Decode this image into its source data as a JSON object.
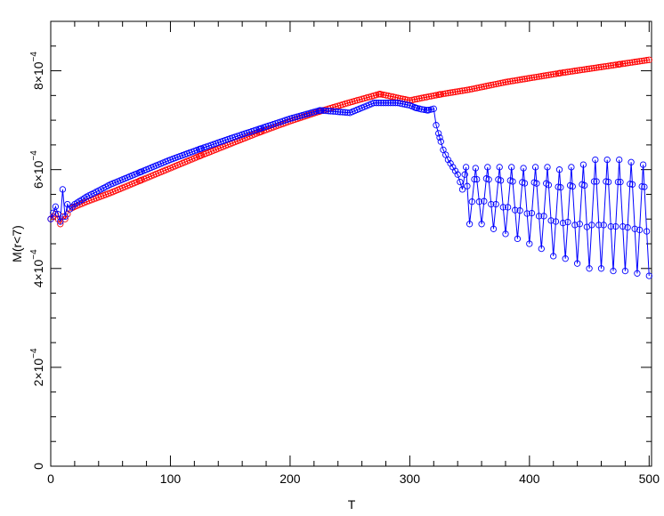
{
  "chart_data": {
    "type": "line",
    "title": "",
    "xlabel": "T",
    "ylabel": "M(r<7)",
    "xlim": [
      0,
      502
    ],
    "ylim": [
      0,
      0.0009
    ],
    "grid": false,
    "legend": "none",
    "x_ticks": [
      {
        "value": 0,
        "label": "0"
      },
      {
        "value": 100,
        "label": "100"
      },
      {
        "value": 200,
        "label": "200"
      },
      {
        "value": 300,
        "label": "300"
      },
      {
        "value": 400,
        "label": "400"
      },
      {
        "value": 500,
        "label": "500"
      }
    ],
    "y_ticks": [
      {
        "value": 0,
        "mantissa": "0",
        "exponent": ""
      },
      {
        "value": 0.0002,
        "mantissa": "2×10",
        "exponent": "−4"
      },
      {
        "value": 0.0004,
        "mantissa": "4×10",
        "exponent": "−4"
      },
      {
        "value": 0.0006,
        "mantissa": "6×10",
        "exponent": "−4"
      },
      {
        "value": 0.0008,
        "mantissa": "8×10",
        "exponent": "−4"
      }
    ],
    "series": [
      {
        "color": "#ff0000",
        "marker": "circle-open",
        "x": [
          0,
          4,
          8,
          10,
          12,
          16,
          20,
          30,
          50,
          75,
          100,
          125,
          150,
          175,
          200,
          225,
          250,
          275,
          300,
          325,
          350,
          360,
          370,
          380,
          400,
          425,
          450,
          475,
          500
        ],
        "y": [
          0.0005,
          0.00051,
          0.00049,
          0.000505,
          0.0005,
          0.00052,
          0.000525,
          0.000535,
          0.000553,
          0.000578,
          0.000603,
          0.000628,
          0.000652,
          0.000676,
          0.000698,
          0.000718,
          0.000736,
          0.000753,
          0.00074,
          0.000752,
          0.000762,
          0.000767,
          0.000772,
          0.000777,
          0.000785,
          0.000795,
          0.000804,
          0.000813,
          0.000822
        ]
      },
      {
        "color": "#0000ff",
        "marker": "circle-open",
        "x": [
          0,
          4,
          8,
          10,
          12,
          14,
          16,
          20,
          30,
          50,
          75,
          100,
          125,
          150,
          175,
          200,
          225,
          250,
          270,
          290,
          300,
          305,
          310,
          315,
          320,
          322,
          325,
          328,
          332,
          336,
          340,
          344,
          347,
          350,
          355,
          360,
          365,
          370,
          375,
          380,
          385,
          390,
          395,
          400,
          405,
          410,
          415,
          420,
          425,
          430,
          435,
          440,
          445,
          450,
          455,
          460,
          465,
          470,
          475,
          480,
          485,
          490,
          495,
          500
        ],
        "y": [
          0.0005,
          0.000525,
          0.000495,
          0.00056,
          0.000505,
          0.00053,
          0.00052,
          0.00053,
          0.000545,
          0.00057,
          0.000595,
          0.00062,
          0.000642,
          0.000663,
          0.000683,
          0.000703,
          0.00072,
          0.000715,
          0.000735,
          0.000735,
          0.00073,
          0.000725,
          0.000722,
          0.00072,
          0.000723,
          0.00069,
          0.000665,
          0.00064,
          0.00062,
          0.000605,
          0.00059,
          0.00056,
          0.000605,
          0.00049,
          0.000603,
          0.00049,
          0.000605,
          0.00048,
          0.000605,
          0.00047,
          0.000605,
          0.00046,
          0.000603,
          0.00045,
          0.000605,
          0.00044,
          0.000605,
          0.000425,
          0.0006,
          0.00042,
          0.000605,
          0.00041,
          0.00061,
          0.0004,
          0.00062,
          0.0004,
          0.00062,
          0.000395,
          0.00062,
          0.000395,
          0.000615,
          0.00039,
          0.00061,
          0.000385
        ]
      }
    ]
  }
}
